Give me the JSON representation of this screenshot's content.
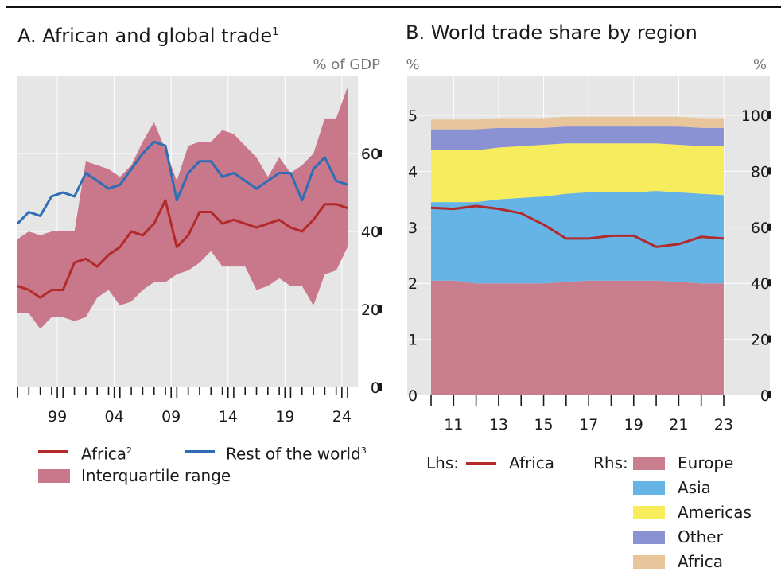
{
  "colors": {
    "africa_line": "#b22a2a",
    "row_line": "#2f6db5",
    "iqr_fill": "#c9778a",
    "plot_bg": "#e6e6e6",
    "europe": "#c97e8e",
    "asia": "#66b3e6",
    "americas": "#f7ec5c",
    "other": "#8b92d4",
    "africa_area": "#e8c59a"
  },
  "panelA": {
    "title": "A. African and global trade",
    "title_sup": "1",
    "unit": "% of GDP",
    "legend": {
      "africa": "Africa",
      "africa_sup": "2",
      "row": "Rest of the world",
      "row_sup": "3",
      "iqr": "Interquartile range"
    }
  },
  "panelB": {
    "title": "B. World trade share by region",
    "unit_left": "%",
    "unit_right": "%",
    "legend": {
      "lhs_label": "Lhs:",
      "africa_line": "Africa",
      "rhs_label": "Rhs:",
      "europe": "Europe",
      "asia": "Asia",
      "americas": "Americas",
      "other": "Other",
      "africa_area": "Africa"
    }
  },
  "chart_data": [
    {
      "type": "line",
      "title": "A. African and global trade",
      "ylabel": "% of GDP",
      "ylim": [
        0,
        80
      ],
      "yticks": [
        0,
        20,
        40,
        60
      ],
      "x": [
        1995,
        1996,
        1997,
        1998,
        1999,
        2000,
        2001,
        2002,
        2003,
        2004,
        2005,
        2006,
        2007,
        2008,
        2009,
        2010,
        2011,
        2012,
        2013,
        2014,
        2015,
        2016,
        2017,
        2018,
        2019,
        2020,
        2021,
        2022,
        2023,
        2024
      ],
      "xtick_labels": [
        "99",
        "04",
        "09",
        "14",
        "19",
        "24"
      ],
      "series": [
        {
          "name": "Africa",
          "values": [
            26,
            25,
            23,
            25,
            25,
            32,
            33,
            31,
            34,
            36,
            40,
            39,
            42,
            48,
            36,
            39,
            45,
            45,
            42,
            43,
            42,
            41,
            42,
            43,
            41,
            40,
            43,
            47,
            47,
            46
          ]
        },
        {
          "name": "Rest of the world",
          "values": [
            42,
            45,
            44,
            49,
            50,
            49,
            55,
            53,
            51,
            52,
            56,
            60,
            63,
            62,
            48,
            55,
            58,
            58,
            54,
            55,
            53,
            51,
            53,
            55,
            55,
            48,
            56,
            59,
            53,
            52
          ]
        },
        {
          "name": "Interquartile range",
          "lower": [
            19,
            19,
            15,
            18,
            18,
            17,
            18,
            23,
            25,
            21,
            22,
            25,
            27,
            27,
            29,
            30,
            32,
            35,
            31,
            31,
            31,
            25,
            26,
            28,
            26,
            26,
            21,
            29,
            30,
            36
          ],
          "upper": [
            38,
            40,
            39,
            40,
            40,
            40,
            58,
            57,
            56,
            54,
            57,
            63,
            68,
            61,
            53,
            62,
            63,
            63,
            66,
            65,
            62,
            59,
            54,
            59,
            55,
            57,
            60,
            69,
            69,
            77
          ]
        }
      ]
    },
    {
      "type": "area",
      "title": "B. World trade share by region",
      "x": [
        2010,
        2011,
        2012,
        2013,
        2014,
        2015,
        2016,
        2017,
        2018,
        2019,
        2020,
        2021,
        2022,
        2023
      ],
      "xtick_labels": [
        "11",
        "13",
        "15",
        "17",
        "19",
        "21",
        "23"
      ],
      "y_left_label": "%",
      "y_left_lim": [
        0,
        5
      ],
      "y_left_ticks": [
        0,
        1,
        2,
        3,
        4,
        5
      ],
      "y_right_label": "%",
      "y_right_lim": [
        0,
        100
      ],
      "y_right_ticks": [
        0,
        20,
        40,
        60,
        80,
        100
      ],
      "series": [
        {
          "name": "Africa",
          "axis": "left",
          "type": "line",
          "values": [
            3.35,
            3.33,
            3.38,
            3.33,
            3.25,
            3.05,
            2.8,
            2.8,
            2.85,
            2.85,
            2.65,
            2.7,
            2.83,
            2.8
          ]
        },
        {
          "name": "Europe",
          "axis": "right",
          "type": "area",
          "values": [
            41,
            41,
            40,
            40,
            40,
            40,
            40.5,
            41,
            41,
            41,
            41,
            40.5,
            40,
            40
          ]
        },
        {
          "name": "Asia",
          "axis": "right",
          "type": "area",
          "values": [
            28,
            28,
            29,
            30,
            30.5,
            31,
            31.5,
            31.5,
            31.5,
            31.5,
            32,
            32,
            32,
            31.5
          ]
        },
        {
          "name": "Americas",
          "axis": "right",
          "type": "area",
          "values": [
            18.5,
            18.5,
            18.5,
            18.5,
            18.5,
            18.5,
            18,
            17.5,
            17.5,
            17.5,
            17,
            17,
            17,
            17.5
          ]
        },
        {
          "name": "Other",
          "axis": "right",
          "type": "area",
          "values": [
            7.5,
            7.5,
            7.5,
            7,
            6.5,
            6,
            6,
            6,
            6,
            6,
            6,
            6.5,
            6.5,
            6.5
          ]
        },
        {
          "name": "Africa",
          "axis": "right",
          "type": "area",
          "values": [
            3.5,
            3.5,
            3.5,
            3.5,
            3.5,
            3.5,
            3.5,
            3.5,
            3.5,
            3.5,
            3.5,
            3.5,
            3.5,
            3.5
          ]
        }
      ]
    }
  ]
}
